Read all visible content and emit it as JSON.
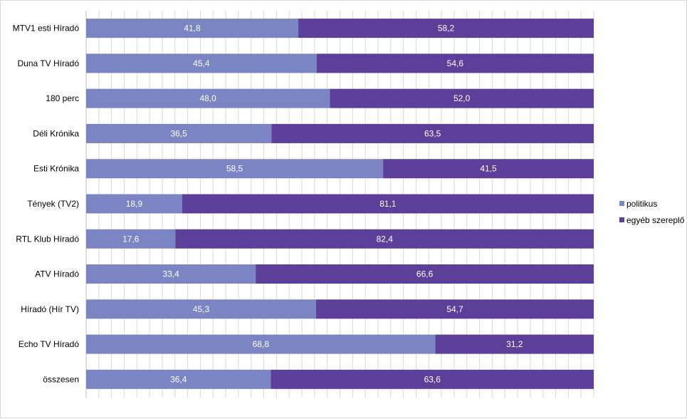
{
  "chart_data": {
    "type": "bar",
    "orientation": "horizontal",
    "stacked": true,
    "title": "",
    "xlabel": "",
    "ylabel": "",
    "xlim": [
      0,
      100
    ],
    "grid": true,
    "legend_position": "right",
    "categories": [
      "MTV1 esti Híradó",
      "Duna TV Híradó",
      "180 perc",
      "Déli Krónika",
      "Esti Krónika",
      "Tények (TV2)",
      "RTL Klub Híradó",
      "ATV Híradó",
      "Híradó (Hír TV)",
      "Echo TV Híradó",
      "összesen"
    ],
    "series": [
      {
        "name": "politikus",
        "color": "#7b85c4",
        "values": [
          41.8,
          45.4,
          48.0,
          36.5,
          58.5,
          18.9,
          17.6,
          33.4,
          45.3,
          68.8,
          36.4
        ],
        "labels": [
          "41,8",
          "45,4",
          "48,0",
          "36,5",
          "58,5",
          "18,9",
          "17,6",
          "33,4",
          "45,3",
          "68,8",
          "36,4"
        ]
      },
      {
        "name": "egyéb szereplő",
        "color": "#5c3f98",
        "values": [
          58.2,
          54.6,
          52.0,
          63.5,
          41.5,
          81.1,
          82.4,
          66.6,
          54.7,
          31.2,
          63.6
        ],
        "labels": [
          "58,2",
          "54,6",
          "52,0",
          "63,5",
          "41,5",
          "81,1",
          "82,4",
          "66,6",
          "54,7",
          "31,2",
          "63,6"
        ]
      }
    ]
  },
  "legend": {
    "items": [
      {
        "label": "politikus",
        "color": "#7b85c4"
      },
      {
        "label": "egyéb szereplő",
        "color": "#5c3f98"
      }
    ]
  }
}
